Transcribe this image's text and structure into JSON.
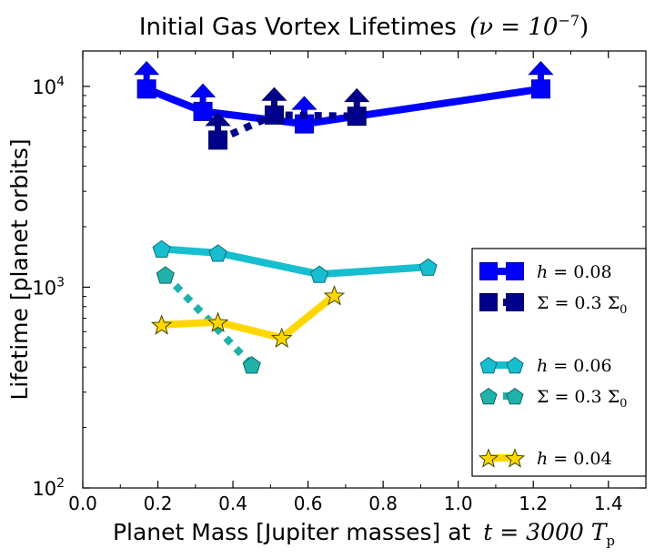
{
  "chart_data": {
    "type": "line",
    "title_text": "Initial Gas Vortex Lifetimes",
    "title_math": "(ν = 10",
    "title_math_exp": "−7",
    "title_math_close": ")",
    "xlabel_text": "Planet Mass [Jupiter masses] at",
    "xlabel_math": "t = 3000 T",
    "xlabel_math_sub": "p",
    "ylabel": "Lifetime [planet orbits]",
    "x_scale": "linear",
    "y_scale": "log",
    "xlim": [
      0.0,
      1.5
    ],
    "ylim": [
      100,
      15000
    ],
    "x_ticks": [
      0.0,
      0.2,
      0.4,
      0.6,
      0.8,
      1.0,
      1.2,
      1.4
    ],
    "x_tick_labels": [
      "0.0",
      "0.2",
      "0.4",
      "0.6",
      "0.8",
      "1.0",
      "1.2",
      "1.4"
    ],
    "y_ticks": [
      100,
      1000,
      10000
    ],
    "y_tick_labels": [
      {
        "base": "10",
        "exp": "2"
      },
      {
        "base": "10",
        "exp": "3"
      },
      {
        "base": "10",
        "exp": "4"
      }
    ],
    "grid": false,
    "legend_position": "lower-right",
    "series": [
      {
        "name": "h = 0.08",
        "name_math": "h",
        "name_value": "= 0.08",
        "color": "#0000ff",
        "edge_color": "#0000aa",
        "marker": "square",
        "linestyle": "solid",
        "lower_limit_arrows": true,
        "x": [
          0.17,
          0.32,
          0.59,
          1.22
        ],
        "y": [
          9700,
          7500,
          6500,
          9700
        ]
      },
      {
        "name": "Σ = 0.3 Σ0",
        "name_math": "Σ = 0.3 Σ",
        "name_sub": "0",
        "color": "#00008b",
        "edge_color": "#000060",
        "marker": "square",
        "linestyle": "dotted",
        "lower_limit_arrows": true,
        "x": [
          0.36,
          0.51,
          0.73
        ],
        "y": [
          5400,
          7200,
          7100
        ]
      },
      {
        "name": "h = 0.06",
        "name_math": "h",
        "name_value": "= 0.06",
        "color": "#17becf",
        "edge_color": "#0f6f7a",
        "marker": "pentagon",
        "linestyle": "solid",
        "lower_limit_arrows": false,
        "x": [
          0.21,
          0.36,
          0.63,
          0.92
        ],
        "y": [
          1550,
          1480,
          1160,
          1260
        ]
      },
      {
        "name": "Σ = 0.3 Σ0",
        "name_math": "Σ = 0.3 Σ",
        "name_sub": "0",
        "color": "#20b2aa",
        "edge_color": "#0f6660",
        "marker": "pentagon",
        "linestyle": "dotted",
        "lower_limit_arrows": false,
        "x": [
          0.22,
          0.45
        ],
        "y": [
          1150,
          410
        ]
      },
      {
        "name": "h = 0.04",
        "name_math": "h",
        "name_value": "= 0.04",
        "color": "#ffd700",
        "edge_color": "#444400",
        "marker": "star",
        "linestyle": "solid",
        "lower_limit_arrows": false,
        "x": [
          0.21,
          0.36,
          0.53,
          0.67
        ],
        "y": [
          650,
          670,
          560,
          910
        ]
      }
    ]
  }
}
